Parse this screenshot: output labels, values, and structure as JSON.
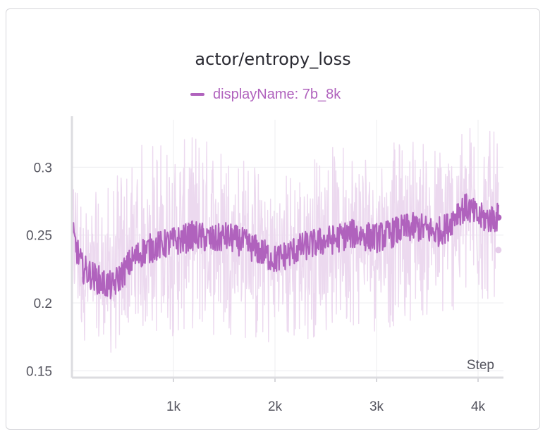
{
  "panel": {
    "title": "actor/entropy_loss",
    "legend_label": "displayName: 7b_8k"
  },
  "chart_data": {
    "type": "line",
    "title": "actor/entropy_loss",
    "xlabel": "Step",
    "ylabel": "",
    "xlim": [
      0,
      4250
    ],
    "ylim": [
      0.145,
      0.335
    ],
    "x_ticks": [
      {
        "value": 1000,
        "label": "1k"
      },
      {
        "value": 2000,
        "label": "2k"
      },
      {
        "value": 3000,
        "label": "3k"
      },
      {
        "value": 4000,
        "label": "4k"
      }
    ],
    "y_ticks": [
      {
        "value": 0.15,
        "label": "0.15"
      },
      {
        "value": 0.2,
        "label": "0.2"
      },
      {
        "value": 0.25,
        "label": "0.25"
      },
      {
        "value": 0.3,
        "label": "0.3"
      }
    ],
    "grid": true,
    "legend_position": "top-center",
    "series": [
      {
        "name": "displayName: 7b_8k",
        "color": "#b062bd",
        "raw_color": "#ecd9ef",
        "x": [
          0,
          100,
          200,
          300,
          400,
          500,
          600,
          700,
          800,
          900,
          1000,
          1100,
          1200,
          1300,
          1400,
          1500,
          1600,
          1700,
          1800,
          1900,
          2000,
          2100,
          2200,
          2300,
          2400,
          2500,
          2600,
          2700,
          2800,
          2900,
          3000,
          3100,
          3200,
          3300,
          3400,
          3500,
          3600,
          3700,
          3800,
          3900,
          4000,
          4100,
          4200
        ],
        "smoothed": [
          0.252,
          0.226,
          0.22,
          0.215,
          0.212,
          0.222,
          0.232,
          0.238,
          0.241,
          0.243,
          0.245,
          0.247,
          0.25,
          0.248,
          0.246,
          0.249,
          0.247,
          0.244,
          0.24,
          0.236,
          0.232,
          0.235,
          0.239,
          0.242,
          0.244,
          0.246,
          0.247,
          0.25,
          0.251,
          0.249,
          0.248,
          0.25,
          0.253,
          0.255,
          0.256,
          0.254,
          0.252,
          0.256,
          0.268,
          0.27,
          0.263,
          0.262,
          0.263
        ],
        "raw_max": [
          0.305,
          0.285,
          0.28,
          0.285,
          0.29,
          0.3,
          0.31,
          0.32,
          0.325,
          0.32,
          0.318,
          0.32,
          0.328,
          0.325,
          0.32,
          0.318,
          0.315,
          0.31,
          0.305,
          0.3,
          0.295,
          0.298,
          0.3,
          0.305,
          0.31,
          0.315,
          0.318,
          0.32,
          0.32,
          0.318,
          0.315,
          0.318,
          0.32,
          0.325,
          0.33,
          0.322,
          0.318,
          0.32,
          0.33,
          0.335,
          0.33,
          0.328,
          0.325
        ],
        "raw_min": [
          0.2,
          0.175,
          0.162,
          0.158,
          0.16,
          0.168,
          0.172,
          0.175,
          0.175,
          0.175,
          0.175,
          0.178,
          0.18,
          0.178,
          0.175,
          0.178,
          0.176,
          0.172,
          0.168,
          0.165,
          0.163,
          0.168,
          0.17,
          0.172,
          0.175,
          0.178,
          0.18,
          0.18,
          0.182,
          0.18,
          0.178,
          0.18,
          0.182,
          0.185,
          0.19,
          0.188,
          0.185,
          0.19,
          0.195,
          0.2,
          0.198,
          0.2,
          0.205
        ],
        "last_value": 0.263,
        "last_raw_value": 0.239
      }
    ]
  }
}
